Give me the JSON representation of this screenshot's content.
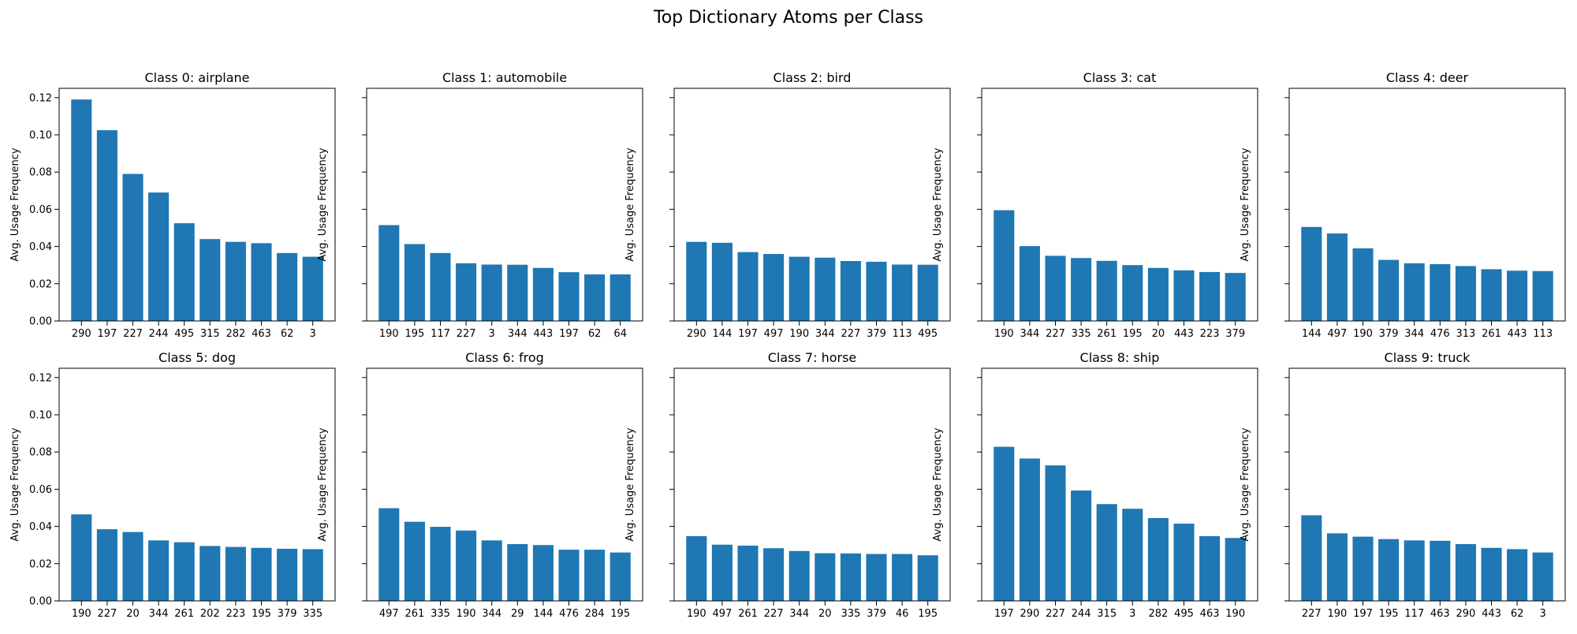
{
  "figure": {
    "title": "Top Dictionary Atoms per Class"
  },
  "chart_data": [
    {
      "type": "bar",
      "title": "Class 0: airplane",
      "ylabel": "Avg. Usage Frequency",
      "ylim": [
        0,
        0.125
      ],
      "yticks": [
        "0.00",
        "0.02",
        "0.04",
        "0.06",
        "0.08",
        "0.10",
        "0.12"
      ],
      "categories": [
        "290",
        "197",
        "227",
        "244",
        "495",
        "315",
        "282",
        "463",
        "62",
        "3"
      ],
      "values": [
        0.119,
        0.1025,
        0.079,
        0.069,
        0.0525,
        0.044,
        0.0425,
        0.0418,
        0.0365,
        0.0345
      ],
      "color": "#1f77b4"
    },
    {
      "type": "bar",
      "title": "Class 1: automobile",
      "ylabel": "Avg. Usage Frequency",
      "ylim": [
        0,
        0.125
      ],
      "categories": [
        "190",
        "195",
        "117",
        "227",
        "3",
        "344",
        "443",
        "197",
        "62",
        "64"
      ],
      "values": [
        0.0515,
        0.0413,
        0.0365,
        0.031,
        0.0303,
        0.0302,
        0.0285,
        0.0262,
        0.025,
        0.025
      ],
      "color": "#1f77b4"
    },
    {
      "type": "bar",
      "title": "Class 2: bird",
      "ylabel": "Avg. Usage Frequency",
      "ylim": [
        0,
        0.125
      ],
      "categories": [
        "290",
        "144",
        "197",
        "497",
        "190",
        "344",
        "227",
        "379",
        "113",
        "495"
      ],
      "values": [
        0.0425,
        0.042,
        0.037,
        0.036,
        0.0345,
        0.034,
        0.0322,
        0.0318,
        0.0303,
        0.0302
      ],
      "color": "#1f77b4"
    },
    {
      "type": "bar",
      "title": "Class 3: cat",
      "ylabel": "Avg. Usage Frequency",
      "ylim": [
        0,
        0.125
      ],
      "categories": [
        "190",
        "344",
        "227",
        "335",
        "261",
        "195",
        "20",
        "443",
        "223",
        "379"
      ],
      "values": [
        0.0595,
        0.0402,
        0.035,
        0.0338,
        0.0323,
        0.03,
        0.0285,
        0.0272,
        0.0263,
        0.0258
      ],
      "color": "#1f77b4"
    },
    {
      "type": "bar",
      "title": "Class 4: deer",
      "ylabel": "Avg. Usage Frequency",
      "ylim": [
        0,
        0.125
      ],
      "categories": [
        "144",
        "497",
        "190",
        "379",
        "344",
        "476",
        "313",
        "261",
        "443",
        "113"
      ],
      "values": [
        0.0505,
        0.047,
        0.039,
        0.0328,
        0.031,
        0.0305,
        0.0295,
        0.0278,
        0.027,
        0.0268
      ],
      "color": "#1f77b4"
    },
    {
      "type": "bar",
      "title": "Class 5: dog",
      "ylabel": "Avg. Usage Frequency",
      "ylim": [
        0,
        0.125
      ],
      "yticks": [
        "0.00",
        "0.02",
        "0.04",
        "0.06",
        "0.08",
        "0.10",
        "0.12"
      ],
      "categories": [
        "190",
        "227",
        "20",
        "344",
        "261",
        "202",
        "223",
        "195",
        "379",
        "335"
      ],
      "values": [
        0.0465,
        0.0385,
        0.037,
        0.0325,
        0.0315,
        0.0295,
        0.029,
        0.0285,
        0.028,
        0.0278
      ],
      "color": "#1f77b4"
    },
    {
      "type": "bar",
      "title": "Class 6: frog",
      "ylabel": "Avg. Usage Frequency",
      "ylim": [
        0,
        0.125
      ],
      "categories": [
        "497",
        "261",
        "335",
        "190",
        "344",
        "29",
        "144",
        "476",
        "284",
        "195"
      ],
      "values": [
        0.0498,
        0.0425,
        0.0398,
        0.0378,
        0.0325,
        0.0305,
        0.03,
        0.0275,
        0.0275,
        0.026
      ],
      "color": "#1f77b4"
    },
    {
      "type": "bar",
      "title": "Class 7: horse",
      "ylabel": "Avg. Usage Frequency",
      "ylim": [
        0,
        0.125
      ],
      "categories": [
        "190",
        "497",
        "261",
        "227",
        "344",
        "20",
        "335",
        "379",
        "46",
        "195"
      ],
      "values": [
        0.0348,
        0.0302,
        0.0297,
        0.0283,
        0.0268,
        0.0256,
        0.0255,
        0.0252,
        0.0252,
        0.0245
      ],
      "color": "#1f77b4"
    },
    {
      "type": "bar",
      "title": "Class 8: ship",
      "ylabel": "Avg. Usage Frequency",
      "ylim": [
        0,
        0.125
      ],
      "categories": [
        "197",
        "290",
        "227",
        "244",
        "315",
        "3",
        "282",
        "495",
        "463",
        "190"
      ],
      "values": [
        0.0828,
        0.0765,
        0.0728,
        0.0593,
        0.052,
        0.0495,
        0.0445,
        0.0415,
        0.0348,
        0.0338
      ],
      "color": "#1f77b4"
    },
    {
      "type": "bar",
      "title": "Class 9: truck",
      "ylabel": "Avg. Usage Frequency",
      "ylim": [
        0,
        0.125
      ],
      "categories": [
        "227",
        "190",
        "197",
        "195",
        "117",
        "463",
        "290",
        "443",
        "62",
        "3"
      ],
      "values": [
        0.046,
        0.0363,
        0.0345,
        0.0332,
        0.0325,
        0.0323,
        0.0305,
        0.0285,
        0.0278,
        0.026
      ],
      "color": "#1f77b4"
    }
  ]
}
